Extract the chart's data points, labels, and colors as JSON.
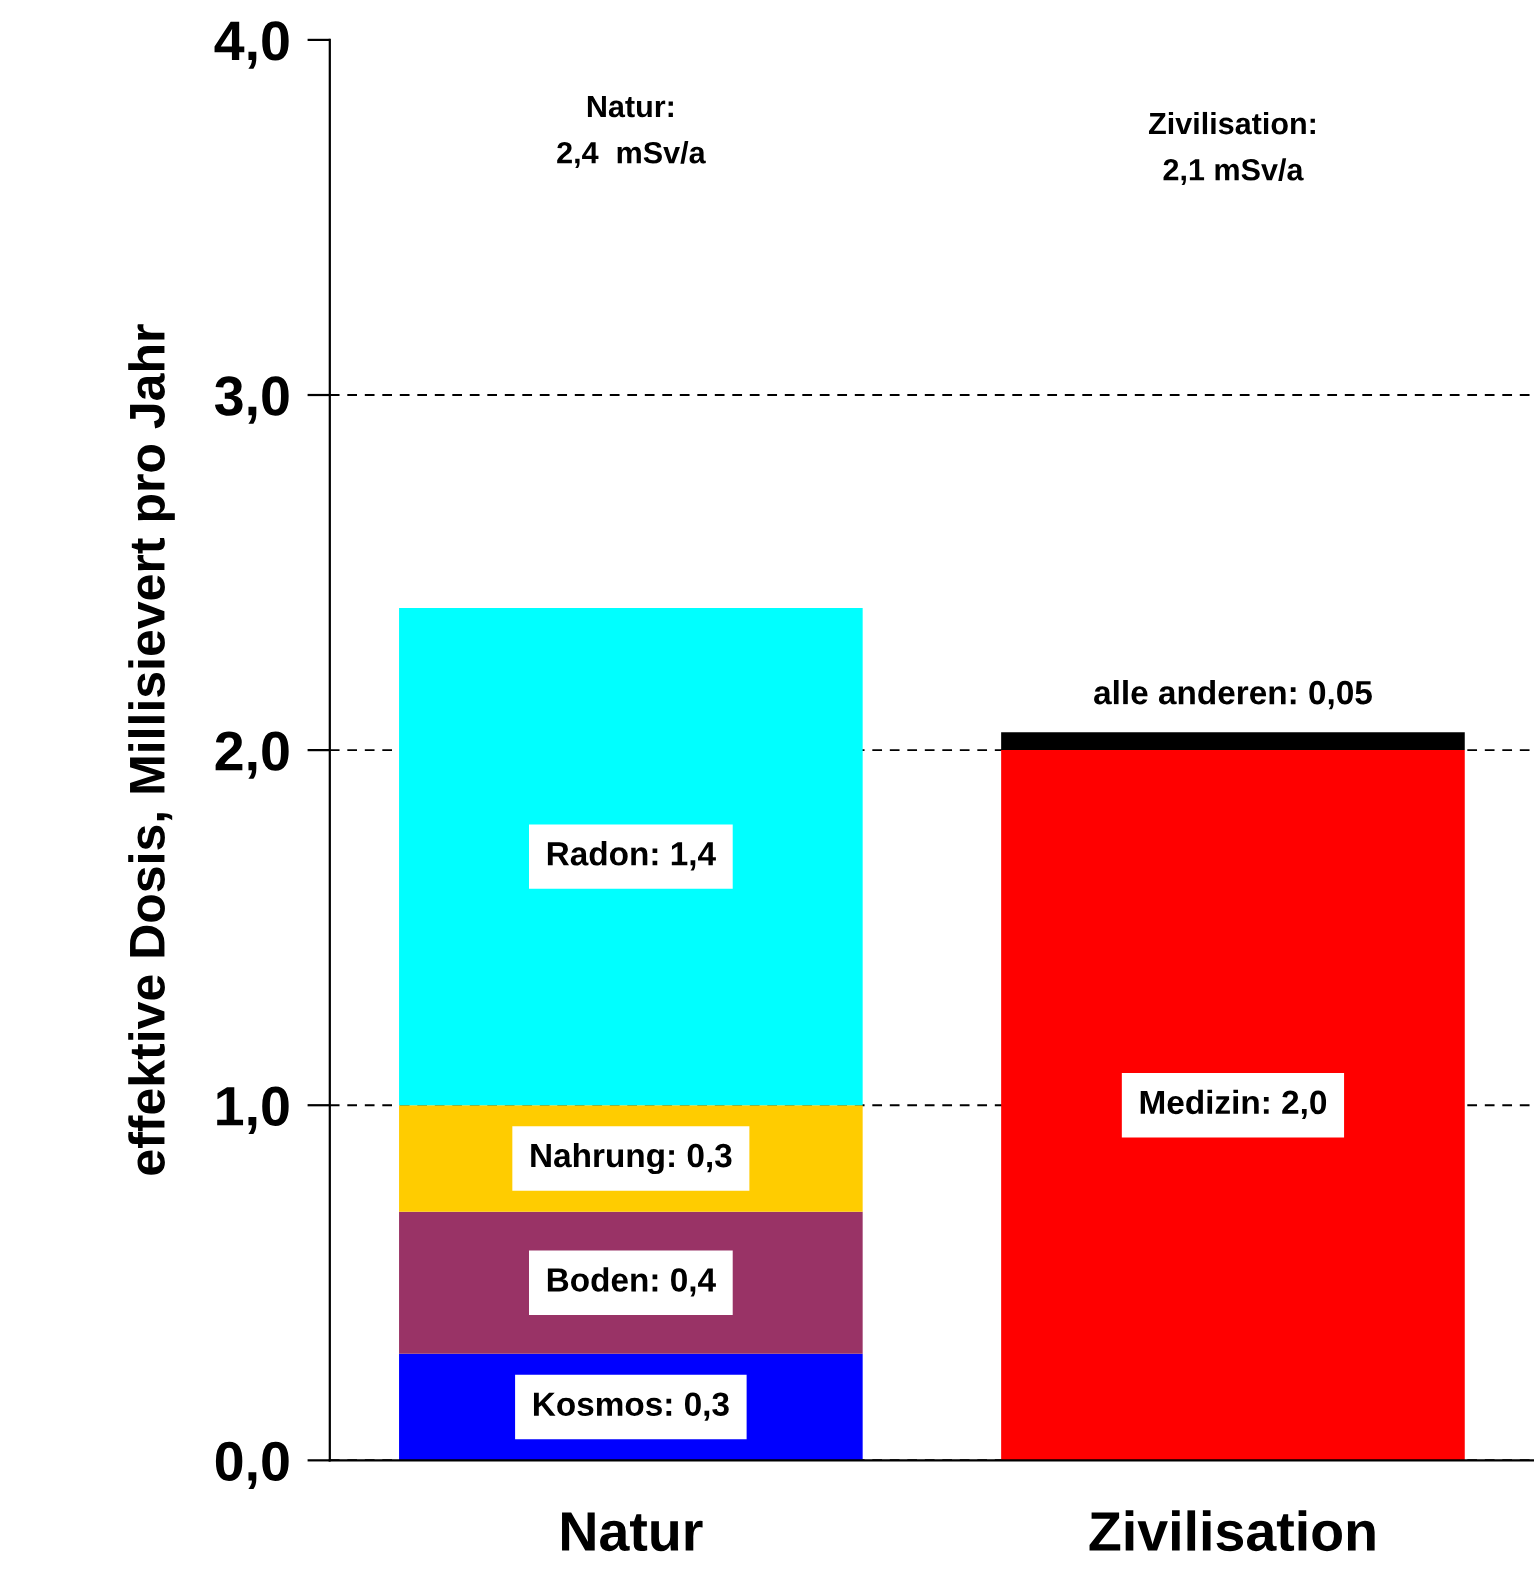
{
  "chart_data": {
    "type": "bar",
    "stacked": true,
    "ylabel": "effektive Dosis, Millisievert pro Jahr",
    "categories": [
      "Natur",
      "Zivilisation"
    ],
    "series": [
      {
        "color": "#0000ff",
        "values": [
          0.3,
          null
        ],
        "value_labels": [
          "Kosmos: 0,3",
          null
        ]
      },
      {
        "color": "#993366",
        "values": [
          0.4,
          null
        ],
        "value_labels": [
          "Boden: 0,4",
          null
        ]
      },
      {
        "color": "#ffcc00",
        "values": [
          0.3,
          null
        ],
        "value_labels": [
          "Nahrung: 0,3",
          null
        ]
      },
      {
        "color": "#00ffff",
        "values": [
          1.4,
          null
        ],
        "value_labels": [
          "Radon: 1,4",
          null
        ]
      },
      {
        "color": "#ff0000",
        "values": [
          null,
          2.0
        ],
        "value_labels": [
          null,
          "Medizin: 2,0"
        ]
      },
      {
        "color": "#000000",
        "values": [
          null,
          0.05
        ],
        "value_labels": [
          null,
          "alle anderen: 0,05"
        ]
      }
    ],
    "annotations": [
      "Natur:\n2,4  mSv/a",
      "Zivilisation:\n2,1 mSv/a"
    ],
    "ylim": [
      0,
      4
    ],
    "yticks": [
      {
        "value": 0,
        "label": "0,0"
      },
      {
        "value": 1,
        "label": "1,0"
      },
      {
        "value": 2,
        "label": "2,0"
      },
      {
        "value": 3,
        "label": "3,0"
      },
      {
        "value": 4,
        "label": "4,0"
      }
    ],
    "grid": "y",
    "legend": false
  }
}
